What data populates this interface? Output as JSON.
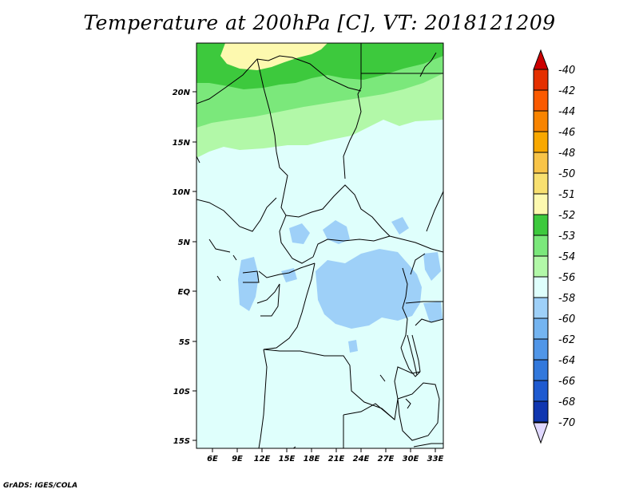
{
  "title": "Temperature at 200hPa [C], VT: 2018121209",
  "credit": "GrADS: IGES/COLA",
  "map": {
    "lat_labels": [
      "20N",
      "15N",
      "10N",
      "5N",
      "EQ",
      "5S",
      "10S",
      "15S"
    ],
    "lon_labels": [
      "6E",
      "9E",
      "12E",
      "15E",
      "18E",
      "21E",
      "24E",
      "27E",
      "30E",
      "33E"
    ],
    "lat_range": [
      -16,
      24.8
    ],
    "lon_range": [
      3.5,
      33.5
    ],
    "colors": {
      "t_-51": "#fdf9af",
      "t_-52": "#3dc93d",
      "t_-53": "#7be87b",
      "t_-54": "#b2f8a8",
      "t_-56": "#dffffc",
      "t_-58": "#9ed0f8",
      "border": "#000000"
    }
  },
  "legend": {
    "labels": [
      "-40",
      "-42",
      "-44",
      "-46",
      "-48",
      "-50",
      "-51",
      "-52",
      "-53",
      "-54",
      "-56",
      "-58",
      "-60",
      "-62",
      "-64",
      "-66",
      "-68",
      "-70"
    ],
    "colors": [
      "#e53000",
      "#fa5a00",
      "#f88400",
      "#f8a800",
      "#f8c448",
      "#f8e070",
      "#fdf9af",
      "#3dc93d",
      "#7be87b",
      "#b2f8a8",
      "#dffffc",
      "#9ed0f8",
      "#74b4f0",
      "#5096e8",
      "#3278dc",
      "#1e5ad0",
      "#1036b0",
      "#06157e"
    ],
    "top_arrow_color": "#cc0000",
    "bottom_arrow_color": "#e0d8ff"
  }
}
